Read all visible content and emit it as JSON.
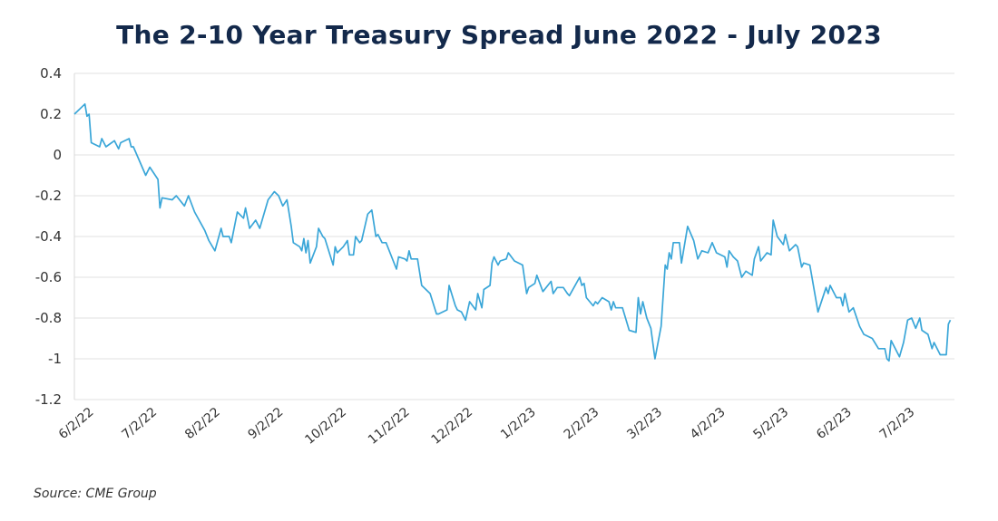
{
  "chart_data": {
    "type": "line",
    "title": "The 2-10 Year Treasury Spread June 2022 - July 2023",
    "xlabel": "",
    "ylabel": "",
    "source": "Source: CME Group",
    "ylim": [
      -1.2,
      0.4
    ],
    "yticks": [
      "0.4",
      "0.2",
      "0",
      "-0.2",
      "-0.4",
      "-0.6",
      "-0.8",
      "-1",
      "-1.2"
    ],
    "ytick_values": [
      0.4,
      0.2,
      0,
      -0.2,
      -0.4,
      -0.6,
      -0.8,
      -1,
      -1.2
    ],
    "xlim": [
      "2022-06-02",
      "2023-07-31"
    ],
    "xticks": [
      "6/2/22",
      "7/2/22",
      "8/2/22",
      "9/2/22",
      "10/2/22",
      "11/2/22",
      "12/2/22",
      "1/2/23",
      "2/2/23",
      "3/2/23",
      "4/2/23",
      "5/2/23",
      "6/2/23",
      "7/2/23"
    ],
    "grid": true,
    "line_color": "#3aa6d8",
    "series": [
      {
        "points": [
          [
            "2022-06-02",
            0.2
          ],
          [
            "2022-06-07",
            0.25
          ],
          [
            "2022-06-08",
            0.19
          ],
          [
            "2022-06-09",
            0.2
          ],
          [
            "2022-06-10",
            0.06
          ],
          [
            "2022-06-14",
            0.04
          ],
          [
            "2022-06-15",
            0.08
          ],
          [
            "2022-06-17",
            0.04
          ],
          [
            "2022-06-21",
            0.07
          ],
          [
            "2022-06-23",
            0.03
          ],
          [
            "2022-06-24",
            0.06
          ],
          [
            "2022-06-28",
            0.08
          ],
          [
            "2022-06-29",
            0.04
          ],
          [
            "2022-06-30",
            0.04
          ],
          [
            "2022-07-06",
            -0.1
          ],
          [
            "2022-07-08",
            -0.06
          ],
          [
            "2022-07-12",
            -0.12
          ],
          [
            "2022-07-13",
            -0.26
          ],
          [
            "2022-07-14",
            -0.21
          ],
          [
            "2022-07-19",
            -0.22
          ],
          [
            "2022-07-21",
            -0.2
          ],
          [
            "2022-07-25",
            -0.25
          ],
          [
            "2022-07-27",
            -0.2
          ],
          [
            "2022-07-30",
            -0.28
          ],
          [
            "2022-08-04",
            -0.37
          ],
          [
            "2022-08-06",
            -0.42
          ],
          [
            "2022-08-09",
            -0.47
          ],
          [
            "2022-08-12",
            -0.36
          ],
          [
            "2022-08-13",
            -0.4
          ],
          [
            "2022-08-16",
            -0.4
          ],
          [
            "2022-08-17",
            -0.43
          ],
          [
            "2022-08-20",
            -0.28
          ],
          [
            "2022-08-23",
            -0.31
          ],
          [
            "2022-08-24",
            -0.26
          ],
          [
            "2022-08-26",
            -0.36
          ],
          [
            "2022-08-29",
            -0.32
          ],
          [
            "2022-08-31",
            -0.36
          ],
          [
            "2022-09-04",
            -0.22
          ],
          [
            "2022-09-07",
            -0.18
          ],
          [
            "2022-09-09",
            -0.2
          ],
          [
            "2022-09-11",
            -0.25
          ],
          [
            "2022-09-13",
            -0.22
          ],
          [
            "2022-09-15",
            -0.35
          ],
          [
            "2022-09-16",
            -0.43
          ],
          [
            "2022-09-19",
            -0.45
          ],
          [
            "2022-09-20",
            -0.47
          ],
          [
            "2022-09-21",
            -0.41
          ],
          [
            "2022-09-22",
            -0.48
          ],
          [
            "2022-09-23",
            -0.42
          ],
          [
            "2022-09-24",
            -0.53
          ],
          [
            "2022-09-27",
            -0.45
          ],
          [
            "2022-09-28",
            -0.36
          ],
          [
            "2022-09-30",
            -0.4
          ],
          [
            "2022-10-01",
            -0.41
          ],
          [
            "2022-10-05",
            -0.54
          ],
          [
            "2022-10-06",
            -0.45
          ],
          [
            "2022-10-07",
            -0.48
          ],
          [
            "2022-10-10",
            -0.45
          ],
          [
            "2022-10-12",
            -0.42
          ],
          [
            "2022-10-13",
            -0.49
          ],
          [
            "2022-10-15",
            -0.49
          ],
          [
            "2022-10-16",
            -0.4
          ],
          [
            "2022-10-18",
            -0.43
          ],
          [
            "2022-10-19",
            -0.42
          ],
          [
            "2022-10-22",
            -0.29
          ],
          [
            "2022-10-24",
            -0.27
          ],
          [
            "2022-10-26",
            -0.4
          ],
          [
            "2022-10-27",
            -0.39
          ],
          [
            "2022-10-29",
            -0.43
          ],
          [
            "2022-10-31",
            -0.43
          ],
          [
            "2022-11-05",
            -0.56
          ],
          [
            "2022-11-06",
            -0.5
          ],
          [
            "2022-11-09",
            -0.51
          ],
          [
            "2022-11-10",
            -0.52
          ],
          [
            "2022-11-11",
            -0.47
          ],
          [
            "2022-11-12",
            -0.51
          ],
          [
            "2022-11-15",
            -0.51
          ],
          [
            "2022-11-17",
            -0.64
          ],
          [
            "2022-11-21",
            -0.68
          ],
          [
            "2022-11-24",
            -0.78
          ],
          [
            "2022-11-25",
            -0.78
          ],
          [
            "2022-11-29",
            -0.76
          ],
          [
            "2022-11-30",
            -0.64
          ],
          [
            "2022-12-03",
            -0.74
          ],
          [
            "2022-12-04",
            -0.76
          ],
          [
            "2022-12-06",
            -0.77
          ],
          [
            "2022-12-08",
            -0.81
          ],
          [
            "2022-12-10",
            -0.72
          ],
          [
            "2022-12-13",
            -0.76
          ],
          [
            "2022-12-14",
            -0.68
          ],
          [
            "2022-12-16",
            -0.75
          ],
          [
            "2022-12-17",
            -0.66
          ],
          [
            "2022-12-20",
            -0.64
          ],
          [
            "2022-12-21",
            -0.53
          ],
          [
            "2022-12-22",
            -0.5
          ],
          [
            "2022-12-24",
            -0.54
          ],
          [
            "2022-12-25",
            -0.52
          ],
          [
            "2022-12-28",
            -0.51
          ],
          [
            "2022-12-29",
            -0.48
          ],
          [
            "2023-01-01",
            -0.52
          ],
          [
            "2023-01-05",
            -0.54
          ],
          [
            "2023-01-07",
            -0.68
          ],
          [
            "2023-01-08",
            -0.65
          ],
          [
            "2023-01-11",
            -0.63
          ],
          [
            "2023-01-12",
            -0.59
          ],
          [
            "2023-01-15",
            -0.67
          ],
          [
            "2023-01-19",
            -0.62
          ],
          [
            "2023-01-20",
            -0.68
          ],
          [
            "2023-01-22",
            -0.65
          ],
          [
            "2023-01-25",
            -0.65
          ],
          [
            "2023-01-27",
            -0.68
          ],
          [
            "2023-01-28",
            -0.69
          ],
          [
            "2023-02-02",
            -0.6
          ],
          [
            "2023-02-03",
            -0.64
          ],
          [
            "2023-02-04",
            -0.63
          ],
          [
            "2023-02-05",
            -0.7
          ],
          [
            "2023-02-08",
            -0.74
          ],
          [
            "2023-02-09",
            -0.72
          ],
          [
            "2023-02-10",
            -0.73
          ],
          [
            "2023-02-12",
            -0.7
          ],
          [
            "2023-02-15",
            -0.72
          ],
          [
            "2023-02-16",
            -0.76
          ],
          [
            "2023-02-17",
            -0.72
          ],
          [
            "2023-02-18",
            -0.75
          ],
          [
            "2023-02-21",
            -0.75
          ],
          [
            "2023-02-24",
            -0.86
          ],
          [
            "2023-02-27",
            -0.87
          ],
          [
            "2023-02-28",
            -0.7
          ],
          [
            "2023-03-01",
            -0.78
          ],
          [
            "2023-03-02",
            -0.72
          ],
          [
            "2023-03-04",
            -0.8
          ],
          [
            "2023-03-06",
            -0.85
          ],
          [
            "2023-03-08",
            -1.0
          ],
          [
            "2023-03-11",
            -0.84
          ],
          [
            "2023-03-13",
            -0.54
          ],
          [
            "2023-03-14",
            -0.56
          ],
          [
            "2023-03-15",
            -0.48
          ],
          [
            "2023-03-16",
            -0.51
          ],
          [
            "2023-03-17",
            -0.43
          ],
          [
            "2023-03-20",
            -0.43
          ],
          [
            "2023-03-21",
            -0.53
          ],
          [
            "2023-03-24",
            -0.35
          ],
          [
            "2023-03-27",
            -0.42
          ],
          [
            "2023-03-29",
            -0.51
          ],
          [
            "2023-03-31",
            -0.47
          ],
          [
            "2023-04-03",
            -0.48
          ],
          [
            "2023-04-05",
            -0.43
          ],
          [
            "2023-04-07",
            -0.48
          ],
          [
            "2023-04-11",
            -0.5
          ],
          [
            "2023-04-12",
            -0.55
          ],
          [
            "2023-04-13",
            -0.47
          ],
          [
            "2023-04-15",
            -0.5
          ],
          [
            "2023-04-17",
            -0.52
          ],
          [
            "2023-04-19",
            -0.6
          ],
          [
            "2023-04-21",
            -0.57
          ],
          [
            "2023-04-24",
            -0.59
          ],
          [
            "2023-04-25",
            -0.51
          ],
          [
            "2023-04-27",
            -0.45
          ],
          [
            "2023-04-28",
            -0.52
          ],
          [
            "2023-05-01",
            -0.48
          ],
          [
            "2023-05-03",
            -0.49
          ],
          [
            "2023-05-04",
            -0.32
          ],
          [
            "2023-05-06",
            -0.4
          ],
          [
            "2023-05-09",
            -0.44
          ],
          [
            "2023-05-10",
            -0.39
          ],
          [
            "2023-05-12",
            -0.47
          ],
          [
            "2023-05-15",
            -0.44
          ],
          [
            "2023-05-16",
            -0.45
          ],
          [
            "2023-05-18",
            -0.55
          ],
          [
            "2023-05-19",
            -0.53
          ],
          [
            "2023-05-22",
            -0.54
          ],
          [
            "2023-05-26",
            -0.77
          ],
          [
            "2023-05-30",
            -0.65
          ],
          [
            "2023-05-31",
            -0.68
          ],
          [
            "2023-06-01",
            -0.64
          ],
          [
            "2023-06-04",
            -0.7
          ],
          [
            "2023-06-06",
            -0.7
          ],
          [
            "2023-06-07",
            -0.74
          ],
          [
            "2023-06-08",
            -0.68
          ],
          [
            "2023-06-10",
            -0.77
          ],
          [
            "2023-06-12",
            -0.75
          ],
          [
            "2023-06-15",
            -0.84
          ],
          [
            "2023-06-17",
            -0.88
          ],
          [
            "2023-06-21",
            -0.9
          ],
          [
            "2023-06-24",
            -0.95
          ],
          [
            "2023-06-27",
            -0.95
          ],
          [
            "2023-06-28",
            -1.0
          ],
          [
            "2023-06-29",
            -1.01
          ],
          [
            "2023-06-30",
            -0.91
          ],
          [
            "2023-07-04",
            -0.99
          ],
          [
            "2023-07-06",
            -0.92
          ],
          [
            "2023-07-08",
            -0.81
          ],
          [
            "2023-07-10",
            -0.8
          ],
          [
            "2023-07-12",
            -0.85
          ],
          [
            "2023-07-14",
            -0.8
          ],
          [
            "2023-07-15",
            -0.86
          ],
          [
            "2023-07-18",
            -0.88
          ],
          [
            "2023-07-20",
            -0.95
          ],
          [
            "2023-07-21",
            -0.92
          ],
          [
            "2023-07-24",
            -0.98
          ],
          [
            "2023-07-27",
            -0.98
          ],
          [
            "2023-07-28",
            -0.83
          ],
          [
            "2023-07-29",
            -0.81
          ]
        ]
      }
    ]
  }
}
